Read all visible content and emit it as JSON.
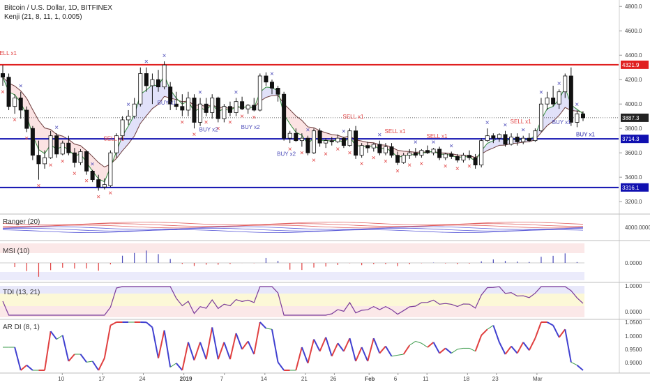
{
  "header": {
    "title": "Bitcoin / U.S. Dollar, 1D, BITFINEX",
    "indicator": "Kenji (21, 8, 11, 1, 0.005)"
  },
  "panels": {
    "ranger": "Ranger (20)",
    "msi": "MSI (10)",
    "tdi": "TDI (13, 21)",
    "ardi": "AR DI (8, 1)"
  },
  "chart_data": [
    {
      "type": "candlestick",
      "title": "Bitcoin / U.S. Dollar, 1D, BITFINEX",
      "y_ticks": [
        3200,
        3400,
        3600,
        3800,
        4000,
        4200,
        4400,
        4600,
        4800
      ],
      "y_tick_labels": [
        "3200.0",
        "3400.0",
        "3600.0",
        "3800.0",
        "4000.0",
        "4200.0",
        "4400.0",
        "4600.0",
        "4800.0"
      ],
      "ylim": [
        3115,
        4830
      ],
      "x_tick_labels": [
        "10",
        "17",
        "24",
        "2019",
        "7",
        "14",
        "21",
        "26",
        "Feb",
        "6",
        "11",
        "18",
        "23",
        "Mar"
      ],
      "x_tick_days": [
        9,
        16,
        23,
        30,
        37,
        44,
        51,
        56,
        62,
        67,
        72,
        79,
        84,
        91
      ],
      "horizontal_levels": [
        {
          "value": 4321.9,
          "label": "4321.9",
          "color": "#e02020"
        },
        {
          "value": 3714.3,
          "label": "3714.3",
          "color": "#1010b0"
        },
        {
          "value": 3316.1,
          "label": "3316.1",
          "color": "#1010b0"
        }
      ],
      "last_price": {
        "value": 3887.3,
        "label": "3887.3"
      },
      "candles": [
        {
          "o": 4250,
          "h": 4320,
          "l": 4150,
          "c": 4220
        },
        {
          "o": 4220,
          "h": 4250,
          "l": 3950,
          "c": 3980
        },
        {
          "o": 3980,
          "h": 4080,
          "l": 3920,
          "c": 4050
        },
        {
          "o": 4050,
          "h": 4100,
          "l": 3880,
          "c": 3950
        },
        {
          "o": 3950,
          "h": 3980,
          "l": 3770,
          "c": 3800
        },
        {
          "o": 3800,
          "h": 3820,
          "l": 3540,
          "c": 3580
        },
        {
          "o": 3580,
          "h": 3700,
          "l": 3380,
          "c": 3510
        },
        {
          "o": 3510,
          "h": 3620,
          "l": 3470,
          "c": 3560
        },
        {
          "o": 3560,
          "h": 3780,
          "l": 3550,
          "c": 3740
        },
        {
          "o": 3740,
          "h": 3760,
          "l": 3560,
          "c": 3590
        },
        {
          "o": 3590,
          "h": 3700,
          "l": 3580,
          "c": 3680
        },
        {
          "o": 3680,
          "h": 3740,
          "l": 3580,
          "c": 3600
        },
        {
          "o": 3600,
          "h": 3640,
          "l": 3480,
          "c": 3520
        },
        {
          "o": 3520,
          "h": 3630,
          "l": 3500,
          "c": 3610
        },
        {
          "o": 3610,
          "h": 3620,
          "l": 3420,
          "c": 3450
        },
        {
          "o": 3450,
          "h": 3460,
          "l": 3360,
          "c": 3380
        },
        {
          "o": 3380,
          "h": 3420,
          "l": 3290,
          "c": 3320
        },
        {
          "o": 3320,
          "h": 3390,
          "l": 3300,
          "c": 3340
        },
        {
          "o": 3330,
          "h": 3620,
          "l": 3320,
          "c": 3600
        },
        {
          "o": 3600,
          "h": 3760,
          "l": 3560,
          "c": 3740
        },
        {
          "o": 3740,
          "h": 3900,
          "l": 3700,
          "c": 3870
        },
        {
          "o": 3870,
          "h": 3950,
          "l": 3830,
          "c": 3900
        },
        {
          "o": 3900,
          "h": 4050,
          "l": 3880,
          "c": 4000
        },
        {
          "o": 4000,
          "h": 4300,
          "l": 3980,
          "c": 4250
        },
        {
          "o": 4250,
          "h": 4300,
          "l": 4100,
          "c": 4150
        },
        {
          "o": 4150,
          "h": 4250,
          "l": 4000,
          "c": 4200
        },
        {
          "o": 4200,
          "h": 4280,
          "l": 4100,
          "c": 4140
        },
        {
          "o": 4140,
          "h": 4350,
          "l": 4120,
          "c": 4320
        },
        {
          "o": 4140,
          "h": 4180,
          "l": 3950,
          "c": 4000
        },
        {
          "o": 4000,
          "h": 4100,
          "l": 3950,
          "c": 3980
        },
        {
          "o": 3980,
          "h": 4080,
          "l": 3900,
          "c": 3950
        },
        {
          "o": 3950,
          "h": 4100,
          "l": 3900,
          "c": 4050
        },
        {
          "o": 4050,
          "h": 4080,
          "l": 3800,
          "c": 3850
        },
        {
          "o": 3850,
          "h": 4050,
          "l": 3820,
          "c": 4000
        },
        {
          "o": 4000,
          "h": 4050,
          "l": 3900,
          "c": 3930
        },
        {
          "o": 3930,
          "h": 4080,
          "l": 3880,
          "c": 4050
        },
        {
          "o": 4050,
          "h": 4060,
          "l": 3850,
          "c": 3880
        },
        {
          "o": 3880,
          "h": 4000,
          "l": 3850,
          "c": 3980
        },
        {
          "o": 3980,
          "h": 4020,
          "l": 3900,
          "c": 3930
        },
        {
          "o": 3930,
          "h": 4050,
          "l": 3900,
          "c": 4020
        },
        {
          "o": 4020,
          "h": 4060,
          "l": 3950,
          "c": 3960
        },
        {
          "o": 3960,
          "h": 4000,
          "l": 3920,
          "c": 3990
        },
        {
          "o": 3990,
          "h": 4050,
          "l": 3940,
          "c": 3950
        },
        {
          "o": 3950,
          "h": 4250,
          "l": 3940,
          "c": 4230
        },
        {
          "o": 4230,
          "h": 4260,
          "l": 4150,
          "c": 4180
        },
        {
          "o": 4180,
          "h": 4200,
          "l": 4080,
          "c": 4130
        },
        {
          "o": 4130,
          "h": 4150,
          "l": 4020,
          "c": 4080
        },
        {
          "o": 4080,
          "h": 4100,
          "l": 3700,
          "c": 3720
        },
        {
          "o": 3720,
          "h": 3780,
          "l": 3680,
          "c": 3760
        },
        {
          "o": 3760,
          "h": 3800,
          "l": 3690,
          "c": 3700
        },
        {
          "o": 3700,
          "h": 3760,
          "l": 3650,
          "c": 3720
        },
        {
          "o": 3720,
          "h": 3740,
          "l": 3580,
          "c": 3600
        },
        {
          "o": 3600,
          "h": 3800,
          "l": 3590,
          "c": 3780
        },
        {
          "o": 3780,
          "h": 3800,
          "l": 3650,
          "c": 3680
        },
        {
          "o": 3680,
          "h": 3720,
          "l": 3640,
          "c": 3700
        },
        {
          "o": 3700,
          "h": 3730,
          "l": 3660,
          "c": 3690
        },
        {
          "o": 3690,
          "h": 3750,
          "l": 3680,
          "c": 3720
        },
        {
          "o": 3720,
          "h": 3730,
          "l": 3640,
          "c": 3660
        },
        {
          "o": 3660,
          "h": 3800,
          "l": 3650,
          "c": 3780
        },
        {
          "o": 3780,
          "h": 3820,
          "l": 3550,
          "c": 3580
        },
        {
          "o": 3580,
          "h": 3680,
          "l": 3560,
          "c": 3660
        },
        {
          "o": 3660,
          "h": 3690,
          "l": 3600,
          "c": 3640
        },
        {
          "o": 3640,
          "h": 3680,
          "l": 3610,
          "c": 3670
        },
        {
          "o": 3670,
          "h": 3700,
          "l": 3580,
          "c": 3600
        },
        {
          "o": 3600,
          "h": 3680,
          "l": 3580,
          "c": 3650
        },
        {
          "o": 3650,
          "h": 3680,
          "l": 3560,
          "c": 3580
        },
        {
          "o": 3580,
          "h": 3610,
          "l": 3500,
          "c": 3520
        },
        {
          "o": 3520,
          "h": 3600,
          "l": 3510,
          "c": 3580
        },
        {
          "o": 3580,
          "h": 3630,
          "l": 3550,
          "c": 3600
        },
        {
          "o": 3600,
          "h": 3640,
          "l": 3560,
          "c": 3580
        },
        {
          "o": 3580,
          "h": 3630,
          "l": 3560,
          "c": 3620
        },
        {
          "o": 3620,
          "h": 3660,
          "l": 3590,
          "c": 3600
        },
        {
          "o": 3600,
          "h": 3640,
          "l": 3580,
          "c": 3630
        },
        {
          "o": 3630,
          "h": 3650,
          "l": 3540,
          "c": 3560
        },
        {
          "o": 3560,
          "h": 3600,
          "l": 3540,
          "c": 3590
        },
        {
          "o": 3590,
          "h": 3610,
          "l": 3550,
          "c": 3570
        },
        {
          "o": 3570,
          "h": 3590,
          "l": 3520,
          "c": 3540
        },
        {
          "o": 3540,
          "h": 3600,
          "l": 3520,
          "c": 3580
        },
        {
          "o": 3580,
          "h": 3620,
          "l": 3540,
          "c": 3560
        },
        {
          "o": 3560,
          "h": 3590,
          "l": 3470,
          "c": 3500
        },
        {
          "o": 3500,
          "h": 3720,
          "l": 3480,
          "c": 3700
        },
        {
          "o": 3700,
          "h": 3800,
          "l": 3690,
          "c": 3740
        },
        {
          "o": 3740,
          "h": 3760,
          "l": 3680,
          "c": 3720
        },
        {
          "o": 3720,
          "h": 3760,
          "l": 3690,
          "c": 3750
        },
        {
          "o": 3750,
          "h": 3780,
          "l": 3650,
          "c": 3670
        },
        {
          "o": 3670,
          "h": 3760,
          "l": 3660,
          "c": 3730
        },
        {
          "o": 3730,
          "h": 3760,
          "l": 3660,
          "c": 3690
        },
        {
          "o": 3690,
          "h": 3740,
          "l": 3670,
          "c": 3720
        },
        {
          "o": 3720,
          "h": 3760,
          "l": 3690,
          "c": 3700
        },
        {
          "o": 3700,
          "h": 3800,
          "l": 3690,
          "c": 3780
        },
        {
          "o": 3780,
          "h": 4050,
          "l": 3770,
          "c": 4000
        },
        {
          "o": 4000,
          "h": 4100,
          "l": 3950,
          "c": 4050
        },
        {
          "o": 4050,
          "h": 4150,
          "l": 3980,
          "c": 4000
        },
        {
          "o": 4000,
          "h": 4120,
          "l": 3960,
          "c": 4100
        },
        {
          "o": 4100,
          "h": 4250,
          "l": 4050,
          "c": 4230
        },
        {
          "o": 4230,
          "h": 4300,
          "l": 3820,
          "c": 3850
        },
        {
          "o": 3850,
          "h": 3950,
          "l": 3810,
          "c": 3920
        },
        {
          "o": 3920,
          "h": 3940,
          "l": 3860,
          "c": 3887
        }
      ],
      "signal_labels": [
        {
          "text": "SELL x1",
          "color": "#e04040"
        },
        {
          "text": "SELL x1",
          "color": "#e04040"
        },
        {
          "text": "SELL x1",
          "color": "#e04040"
        },
        {
          "text": "SELL x1",
          "color": "#e04040"
        },
        {
          "text": "SELL x1",
          "color": "#e04040"
        },
        {
          "text": "SELL x1",
          "color": "#e04040"
        },
        {
          "text": "BUY x1",
          "color": "#4a4ab8"
        },
        {
          "text": "BUY x2",
          "color": "#4a4ab8"
        },
        {
          "text": "BUY x2",
          "color": "#4a4ab8"
        },
        {
          "text": "BUY x2",
          "color": "#4a4ab8"
        },
        {
          "text": "BUY x1",
          "color": "#4a4ab8"
        },
        {
          "text": "BUY x1",
          "color": "#4a4ab8"
        },
        {
          "text": "BUY x1",
          "color": "#4a4ab8"
        }
      ]
    },
    {
      "type": "line",
      "title": "Ranger (20)",
      "y_tick_labels": [
        "4000.0000"
      ]
    },
    {
      "type": "bar",
      "title": "MSI (10)",
      "y_tick_labels": [
        "0.0000"
      ]
    },
    {
      "type": "line",
      "title": "TDI (13, 21)",
      "y_tick_labels": [
        "1.0000",
        "0.0000"
      ]
    },
    {
      "type": "line",
      "title": "AR DI (8, 1)",
      "y_tick_labels": [
        "1.0500",
        "1.0000",
        "0.9500",
        "0.9000"
      ]
    }
  ],
  "colors": {
    "up": "#ffffff",
    "down": "#111111",
    "sell": "#e04040",
    "buy": "#4a4ab8",
    "res": "#e02020",
    "sup": "#1010b0"
  }
}
